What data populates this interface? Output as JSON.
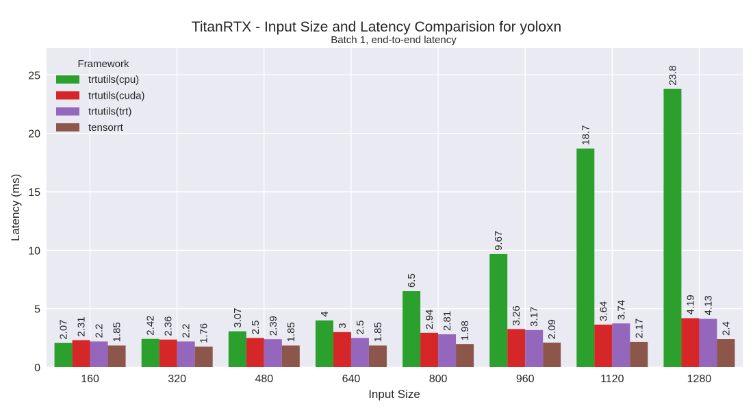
{
  "chart_data": {
    "type": "bar",
    "title": "TitanRTX - Input Size and Latency Comparision for yoloxn",
    "subtitle": "Batch 1, end-to-end latency",
    "xlabel": "Input Size",
    "ylabel": "Latency (ms)",
    "ylim": [
      0,
      27.3
    ],
    "yticks": [
      0,
      5,
      10,
      15,
      20,
      25
    ],
    "grid": true,
    "legend_title": "Framework",
    "legend_position": "top-left",
    "categories": [
      "160",
      "320",
      "480",
      "640",
      "800",
      "960",
      "1120",
      "1280"
    ],
    "series": [
      {
        "name": "trtutils(cpu)",
        "color": "#2ca02c",
        "values": [
          2.07,
          2.42,
          3.07,
          4,
          6.5,
          9.67,
          18.7,
          23.8
        ],
        "labels": [
          "2.07",
          "2.42",
          "3.07",
          "4",
          "6.5",
          "9.67",
          "18.7",
          "23.8"
        ]
      },
      {
        "name": "trtutils(cuda)",
        "color": "#d62728",
        "values": [
          2.31,
          2.36,
          2.5,
          3,
          2.94,
          3.26,
          3.64,
          4.19
        ],
        "labels": [
          "2.31",
          "2.36",
          "2.5",
          "3",
          "2.94",
          "3.26",
          "3.64",
          "4.19"
        ]
      },
      {
        "name": "trtutils(trt)",
        "color": "#9467bd",
        "values": [
          2.2,
          2.2,
          2.39,
          2.5,
          2.81,
          3.17,
          3.74,
          4.13
        ],
        "labels": [
          "2.2",
          "2.2",
          "2.39",
          "2.5",
          "2.81",
          "3.17",
          "3.74",
          "4.13"
        ]
      },
      {
        "name": "tensorrt",
        "color": "#8c564b",
        "values": [
          1.85,
          1.76,
          1.85,
          1.85,
          1.98,
          2.09,
          2.17,
          2.4
        ],
        "labels": [
          "1.85",
          "1.76",
          "1.85",
          "1.85",
          "1.98",
          "2.09",
          "2.17",
          "2.4"
        ]
      }
    ],
    "colors": {
      "plot_background": "#eaeaf2",
      "grid": "#ffffff"
    }
  }
}
